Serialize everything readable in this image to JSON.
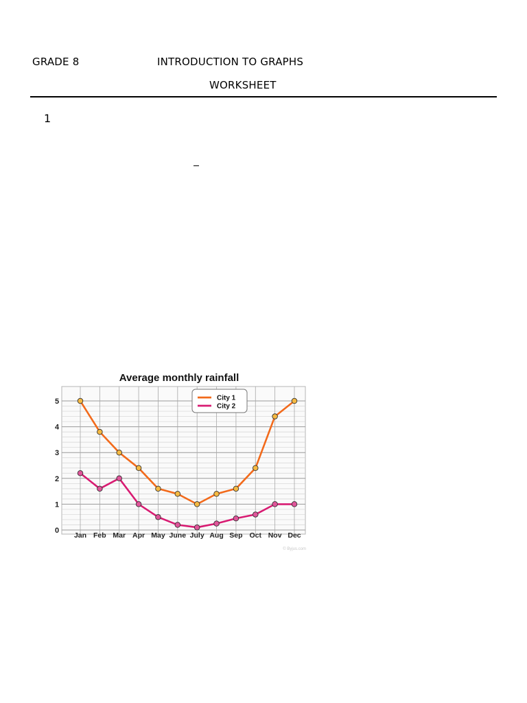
{
  "header": {
    "grade": "GRADE 8",
    "title": "INTRODUCTION TO GRAPHS",
    "subtitle": "WORKSHEET"
  },
  "question": {
    "number": "1"
  },
  "chart_data": {
    "type": "line",
    "title": "Average monthly rainfall",
    "xlabel": "",
    "ylabel": "",
    "categories": [
      "Jan",
      "Feb",
      "Mar",
      "Apr",
      "May",
      "June",
      "July",
      "Aug",
      "Sep",
      "Oct",
      "Nov",
      "Dec"
    ],
    "ylim": [
      0,
      5
    ],
    "yticks": [
      "0",
      "1",
      "2",
      "3",
      "4",
      "5"
    ],
    "grid": true,
    "legend_position": "top-right",
    "series": [
      {
        "name": "City 1",
        "color": "#f26a1b",
        "marker_color": "#f5b942",
        "values": [
          5.0,
          3.8,
          3.0,
          2.4,
          1.6,
          1.4,
          1.0,
          1.4,
          1.6,
          2.4,
          4.4,
          5.0
        ]
      },
      {
        "name": "City 2",
        "color": "#d81b72",
        "marker_color": "#e0559a",
        "values": [
          2.2,
          1.6,
          2.0,
          1.0,
          0.5,
          0.2,
          0.1,
          0.25,
          0.45,
          0.6,
          1.0,
          1.0
        ]
      }
    ],
    "watermark": "© Byjus.com"
  }
}
